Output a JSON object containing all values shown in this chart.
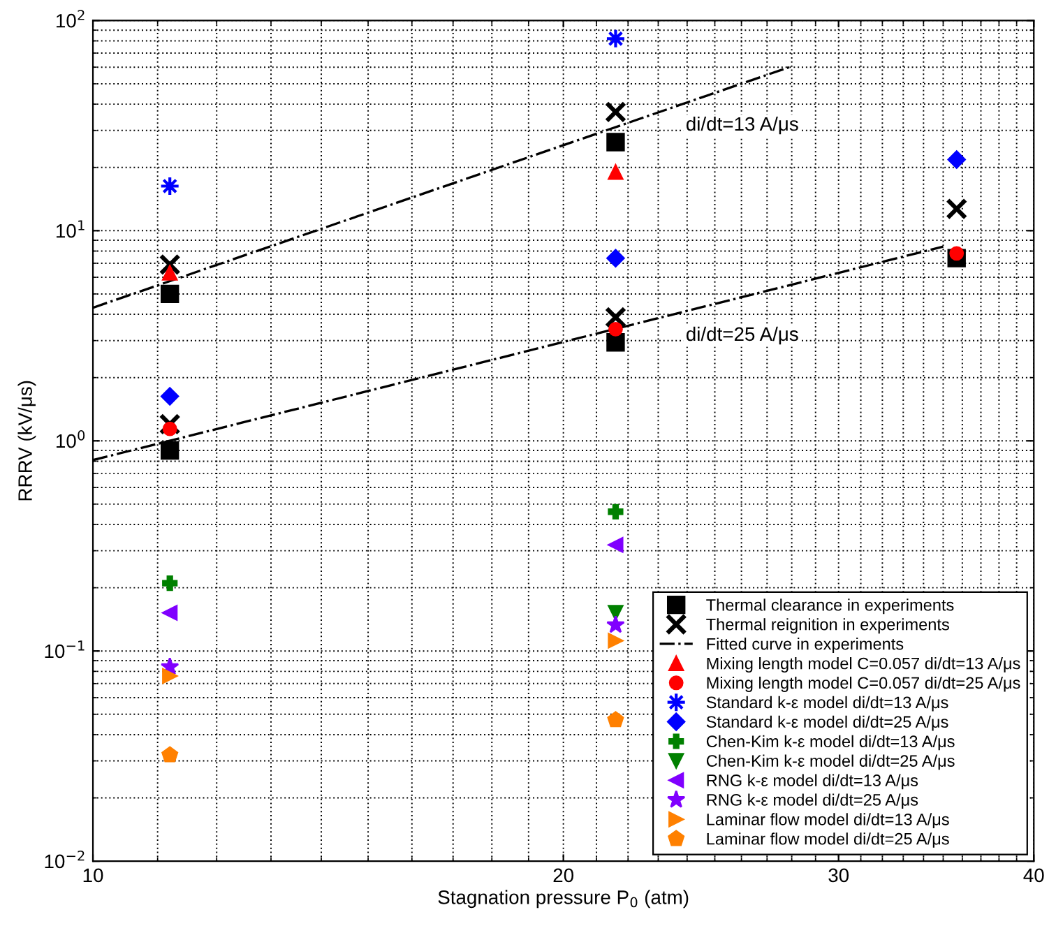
{
  "chart_data": {
    "type": "scatter",
    "xlabel": "Stagnation pressure P$_{0}$ (atm)",
    "ylabel": "RRRV (kV/μs)",
    "log": "xy",
    "grid": true,
    "legend": "bottom right",
    "xlim": [
      10,
      40
    ],
    "xticks": [
      10,
      20,
      30,
      40
    ],
    "ylim": [
      0.01,
      100
    ],
    "yticks": [
      {
        "value": 0.01,
        "label": "10$^{−2}$"
      },
      {
        "value": 0.1,
        "label": "10$^{−1}$"
      },
      {
        "value": 1,
        "label": "10$^{0}$"
      },
      {
        "value": 10,
        "label": "10$^{1}$"
      },
      {
        "value": 100,
        "label": "10$^{2}$"
      }
    ],
    "annotations": [
      "di/dt=13 A/μs",
      "di/dt=25 A/μs"
    ],
    "series": [
      {
        "name": "Thermal clearance in experiments",
        "type": "scatter",
        "marker": "square",
        "color": "#000000",
        "x": [
          11.2,
          11.2,
          21.6,
          21.6,
          35.7
        ],
        "values": [
          5.0,
          0.9,
          26.4,
          2.94,
          7.4
        ]
      },
      {
        "name": "Thermal reignition in experiments",
        "type": "scatter",
        "marker": "x",
        "color": "#000000",
        "x": [
          11.2,
          11.2,
          21.6,
          21.6,
          35.7
        ],
        "values": [
          6.9,
          1.2,
          36.7,
          3.87,
          12.7
        ]
      },
      {
        "name": "Fitted curve in experiments",
        "type": "line",
        "line_style": "dashdot",
        "marker": "none",
        "color": "#000000",
        "x": [
          10,
          27.9
        ],
        "values": [
          4.3,
          60
        ]
      },
      {
        "type": "line",
        "line_style": "dashdot",
        "marker": "none",
        "color": "#000000",
        "x": [
          10,
          35
        ],
        "values": [
          0.81,
          8.4
        ]
      },
      {
        "name": "Mixing length model C=0.057 di/dt=13 A/μs",
        "type": "scatter",
        "marker": "triangle",
        "color": "#ff0000",
        "x": [
          11.2,
          21.6
        ],
        "values": [
          6.3,
          19
        ]
      },
      {
        "name": "Mixing length model C=0.057 di/dt=25 A/μs",
        "type": "scatter",
        "marker": "circle",
        "color": "#ff0000",
        "x": [
          11.2,
          21.6,
          35.7
        ],
        "values": [
          1.14,
          3.4,
          7.8
        ]
      },
      {
        "name": "Standard k-ε model di/dt=13 A/μs",
        "type": "scatter",
        "marker": "asterisk",
        "color": "#0000ff",
        "x": [
          11.2,
          21.6
        ],
        "values": [
          16.3,
          82
        ]
      },
      {
        "name": "Standard k-ε model di/dt=25 A/μs",
        "type": "scatter",
        "marker": "diamond",
        "color": "#0000ff",
        "x": [
          11.2,
          21.6,
          35.7
        ],
        "values": [
          1.63,
          7.4,
          21.8
        ]
      },
      {
        "name": "Chen-Kim k-ε model di/dt=13 A/μs",
        "type": "scatter",
        "marker": "plus",
        "color": "#008000",
        "x": [
          11.2,
          21.6
        ],
        "values": [
          0.21,
          0.46
        ]
      },
      {
        "name": "Chen-Kim k-ε model di/dt=25 A/μs",
        "type": "scatter",
        "marker": "triangle-down",
        "color": "#008000",
        "x": [
          21.6
        ],
        "values": [
          0.152
        ]
      },
      {
        "name": "RNG k-ε model di/dt=13 A/μs",
        "type": "scatter",
        "marker": "triangle-left",
        "color": "#8000ff",
        "x": [
          11.2,
          21.6
        ],
        "values": [
          0.152,
          0.32
        ]
      },
      {
        "name": "RNG k-ε model di/dt=25 A/μs",
        "type": "scatter",
        "marker": "star",
        "color": "#8000ff",
        "x": [
          11.2,
          21.6
        ],
        "values": [
          0.084,
          0.133
        ]
      },
      {
        "name": "Laminar flow model di/dt=13 A/μs",
        "type": "scatter",
        "marker": "triangle-right",
        "color": "#ff8000",
        "x": [
          11.2,
          21.6
        ],
        "values": [
          0.076,
          0.112
        ]
      },
      {
        "name": "Laminar flow model di/dt=25 A/μs",
        "type": "scatter",
        "color": "#ff8000",
        "x": [
          11.2,
          21.6
        ],
        "values": [
          0.032,
          0.047
        ]
      }
    ]
  }
}
